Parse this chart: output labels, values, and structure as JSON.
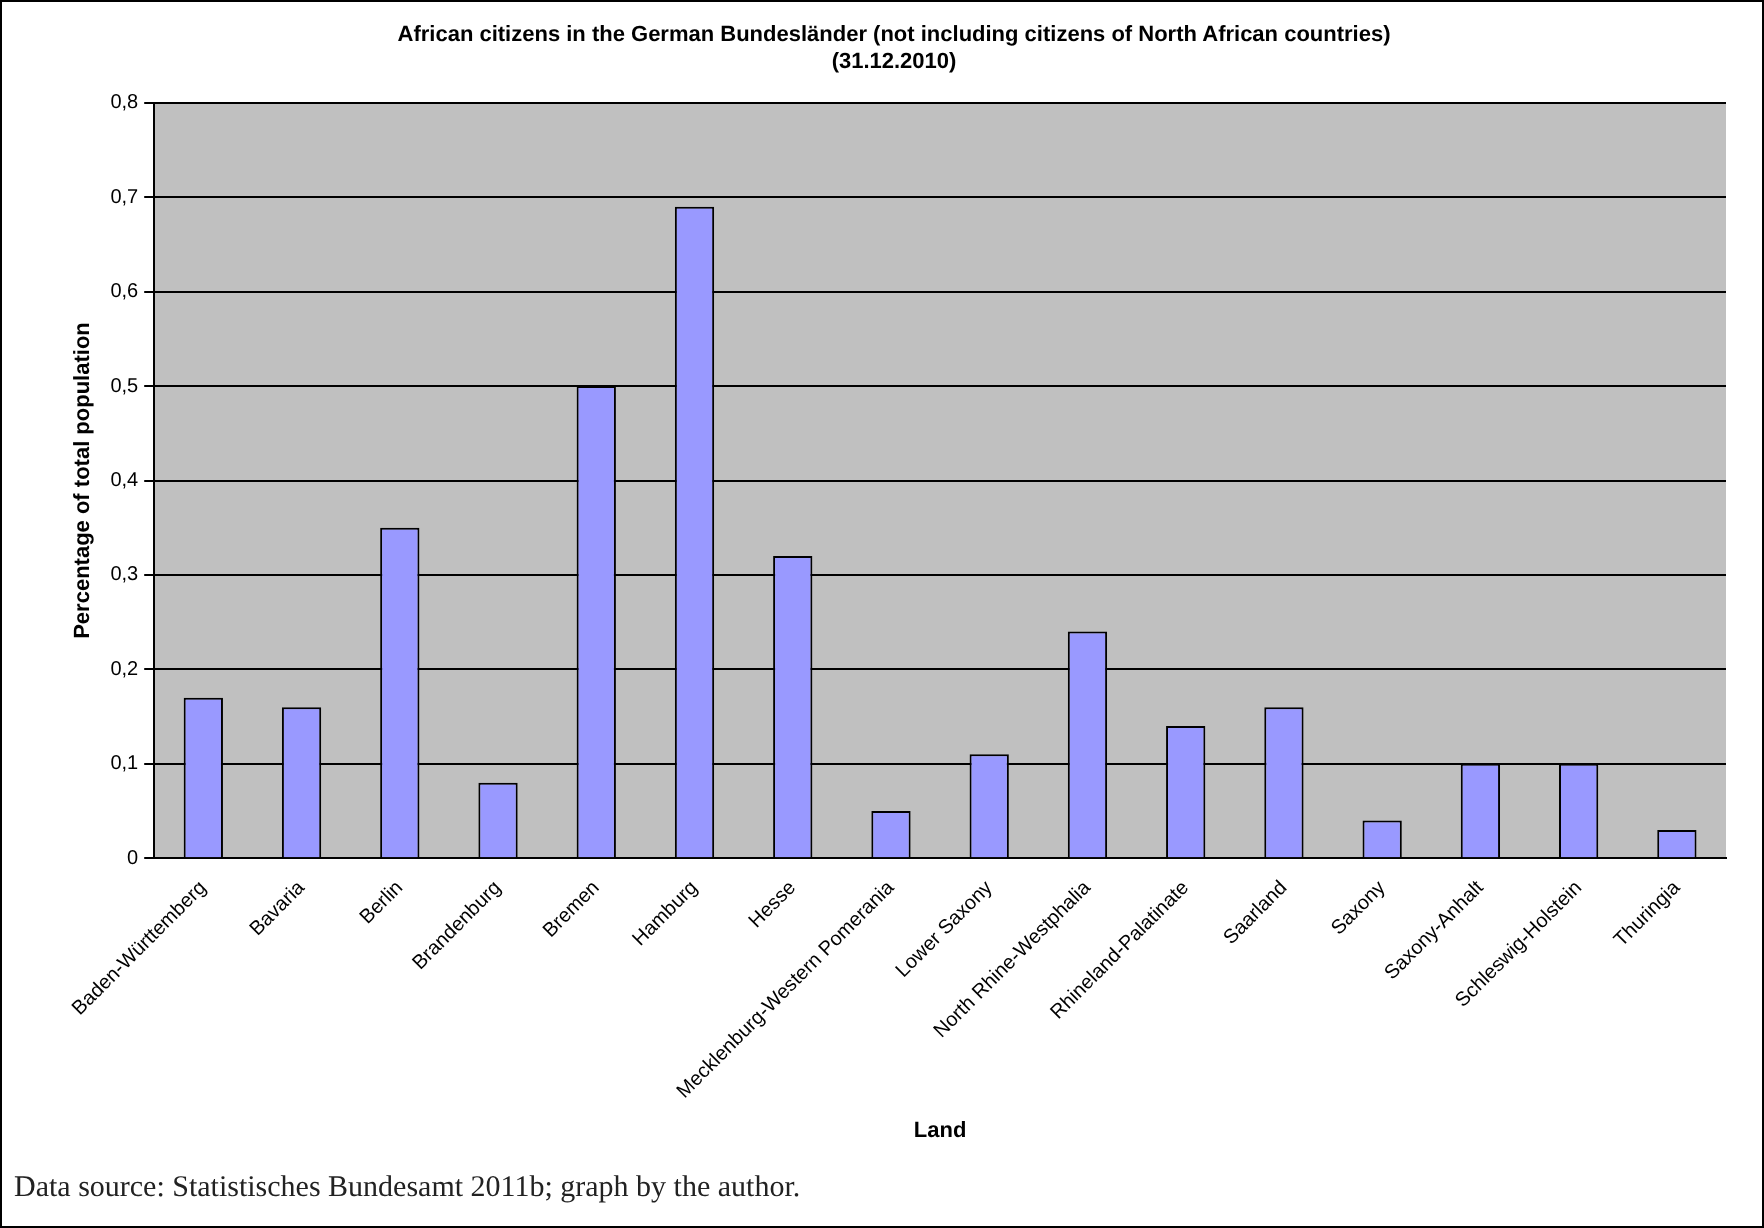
{
  "chart_data": {
    "type": "bar",
    "title": [
      "African citizens in the German Bundesländer (not including citizens of North African countries)",
      "(31.12.2010)"
    ],
    "xlabel": "Land",
    "ylabel": "Percentage of total population",
    "categories": [
      "Baden-Württemberg",
      "Bavaria",
      "Berlin",
      "Brandenburg",
      "Bremen",
      "Hamburg",
      "Hesse",
      "Mecklenburg-Western Pomerania",
      "Lower Saxony",
      "North Rhine-Westphalia",
      "Rhineland-Palatinate",
      "Saarland",
      "Saxony",
      "Saxony-Anhalt",
      "Schleswig-Holstein",
      "Thuringia"
    ],
    "values": [
      0.17,
      0.16,
      0.35,
      0.08,
      0.5,
      0.69,
      0.32,
      0.05,
      0.11,
      0.24,
      0.14,
      0.16,
      0.04,
      0.1,
      0.1,
      0.03
    ],
    "color": "#9999ff",
    "ylim": [
      0,
      0.8
    ],
    "yticks": [
      0,
      {
        "value": 0.1,
        "label": "0,1"
      },
      {
        "value": 0.2,
        "label": "0,2"
      },
      {
        "value": 0.3,
        "label": "0,3"
      },
      {
        "value": 0.4,
        "label": "0,4"
      },
      {
        "value": 0.5,
        "label": "0,5"
      },
      {
        "value": 0.6,
        "label": "0,6"
      },
      {
        "value": 0.7,
        "label": "0,7"
      },
      {
        "value": 0.8,
        "label": "0,8"
      }
    ],
    "grid": "y",
    "legend": false,
    "annotations": [
      "Data source: Statistisches Bundesamt 2011b; graph by the author."
    ]
  }
}
